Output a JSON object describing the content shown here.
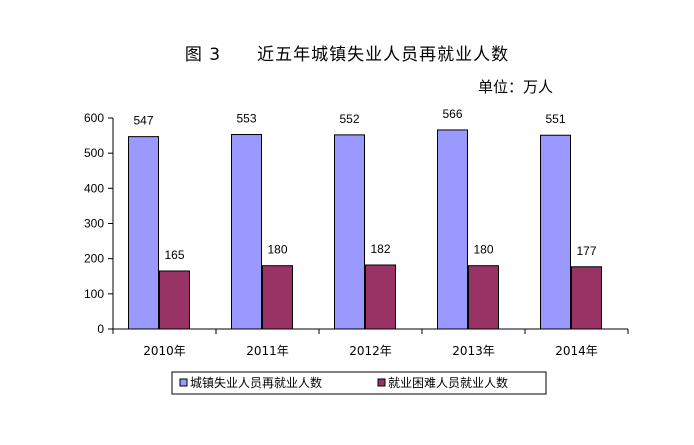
{
  "header": {
    "title": "图 3　　近五年城镇失业人员再就业人数",
    "unit": "单位：万人"
  },
  "chart_data": {
    "type": "bar",
    "categories": [
      "2010年",
      "2011年",
      "2012年",
      "2013年",
      "2014年"
    ],
    "series": [
      {
        "name": "城镇失业人员再就业人数",
        "values": [
          547,
          553,
          552,
          566,
          551
        ],
        "color": "#9999ff"
      },
      {
        "name": "就业困难人员就业人数",
        "values": [
          165,
          180,
          182,
          180,
          177
        ],
        "color": "#993366"
      }
    ],
    "ylim": [
      0,
      600
    ],
    "yticks": [
      0,
      100,
      200,
      300,
      400,
      500,
      600
    ],
    "grid": false,
    "legend": "bottom"
  }
}
